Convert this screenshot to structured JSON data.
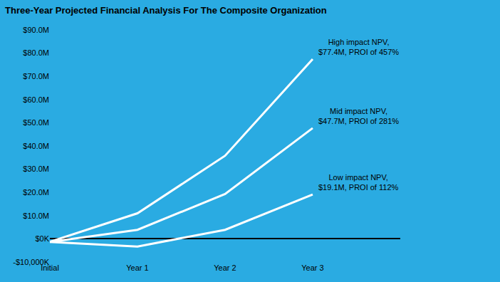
{
  "chart_data": {
    "type": "line",
    "title": "Three-Year Projected Financial Analysis For The Composite Organization",
    "categories": [
      "Initial",
      "Year 1",
      "Year 2",
      "Year 3"
    ],
    "series": [
      {
        "label": "High impact NPV,\n$77.4M, PROI of 457%",
        "color": "#ffffff",
        "values": [
          -1.3,
          11.0,
          35.8,
          77.4
        ]
      },
      {
        "label": "Mid impact NPV,\n$47.7M, PROI of 281%",
        "color": "#ffffff",
        "values": [
          -1.3,
          3.9,
          19.3,
          47.7
        ]
      },
      {
        "label": "Low impact NPV,\n$19.1M, PROI of 112%",
        "color": "#ffffff",
        "values": [
          -1.3,
          -3.3,
          3.9,
          19.1
        ]
      }
    ],
    "ylim": [
      -10,
      90
    ],
    "yticks": [
      {
        "value": -10,
        "label": "-$10,000K"
      },
      {
        "value": 0,
        "label": "$0K"
      },
      {
        "value": 10,
        "label": "$10.0M"
      },
      {
        "value": 20,
        "label": "$20.0M"
      },
      {
        "value": 30,
        "label": "$30.0M"
      },
      {
        "value": 40,
        "label": "$40.0M"
      },
      {
        "value": 50,
        "label": "$50.0M"
      },
      {
        "value": 60,
        "label": "$60.0M"
      },
      {
        "value": 70,
        "label": "$70.0M"
      },
      {
        "value": 80,
        "label": "$80.0M"
      },
      {
        "value": 90,
        "label": "$90.0M"
      }
    ],
    "grid": false
  }
}
